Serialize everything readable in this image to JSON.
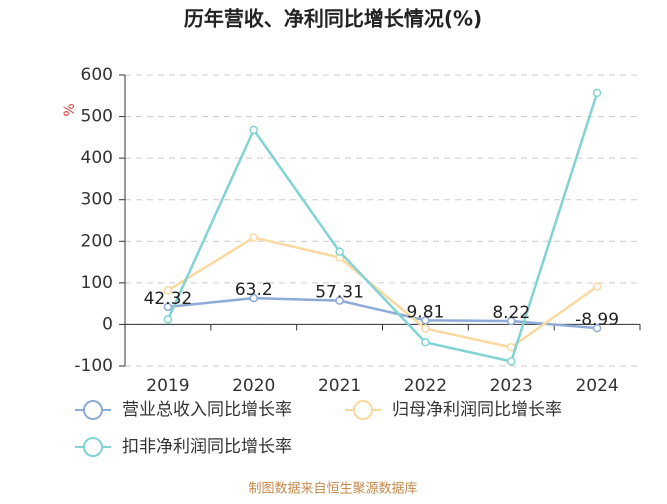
{
  "chart_data": {
    "type": "line",
    "title": "历年营收、净利同比增长情况(%)",
    "y_label": "%",
    "categories": [
      "2019",
      "2020",
      "2021",
      "2022",
      "2023",
      "2024"
    ],
    "series": [
      {
        "name": "营业总收入同比增长率",
        "color": "#8eaad8",
        "values": [
          42.32,
          63.2,
          57.31,
          9.81,
          8.22,
          -8.99
        ],
        "data_labels": true
      },
      {
        "name": "归母净利润同比增长率",
        "color": "#fad9a1",
        "values": [
          82,
          209,
          161,
          -10,
          -55,
          91
        ]
      },
      {
        "name": "扣非净利润同比增长率",
        "color": "#82d3d3",
        "values": [
          12,
          468,
          175,
          -43,
          -89,
          557
        ]
      }
    ],
    "ylim": [
      -100,
      600
    ],
    "yticks": [
      -100,
      0,
      100,
      200,
      300,
      400,
      500,
      600
    ],
    "grid": true,
    "footer": "制图数据来自恒生聚源数据库"
  }
}
